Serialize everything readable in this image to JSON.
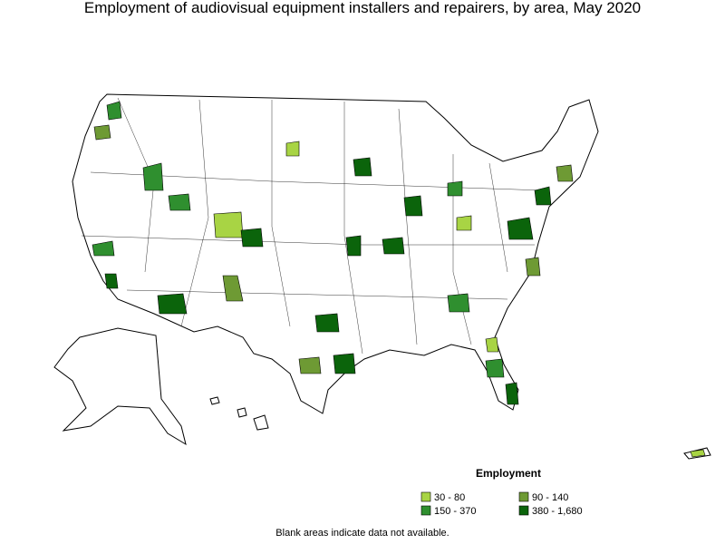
{
  "header": {
    "title": "Employment of audiovisual equipment installers and repairers, by area, May 2020"
  },
  "legend": {
    "title": "Employment",
    "items": [
      {
        "label": "30 - 80",
        "color": "#a8d444"
      },
      {
        "label": "90 - 140",
        "color": "#6e9a34"
      },
      {
        "label": "150 - 370",
        "color": "#2f8f2f"
      },
      {
        "label": "380 - 1,680",
        "color": "#0b640b"
      }
    ]
  },
  "footnote": "Blank areas indicate data not available."
}
